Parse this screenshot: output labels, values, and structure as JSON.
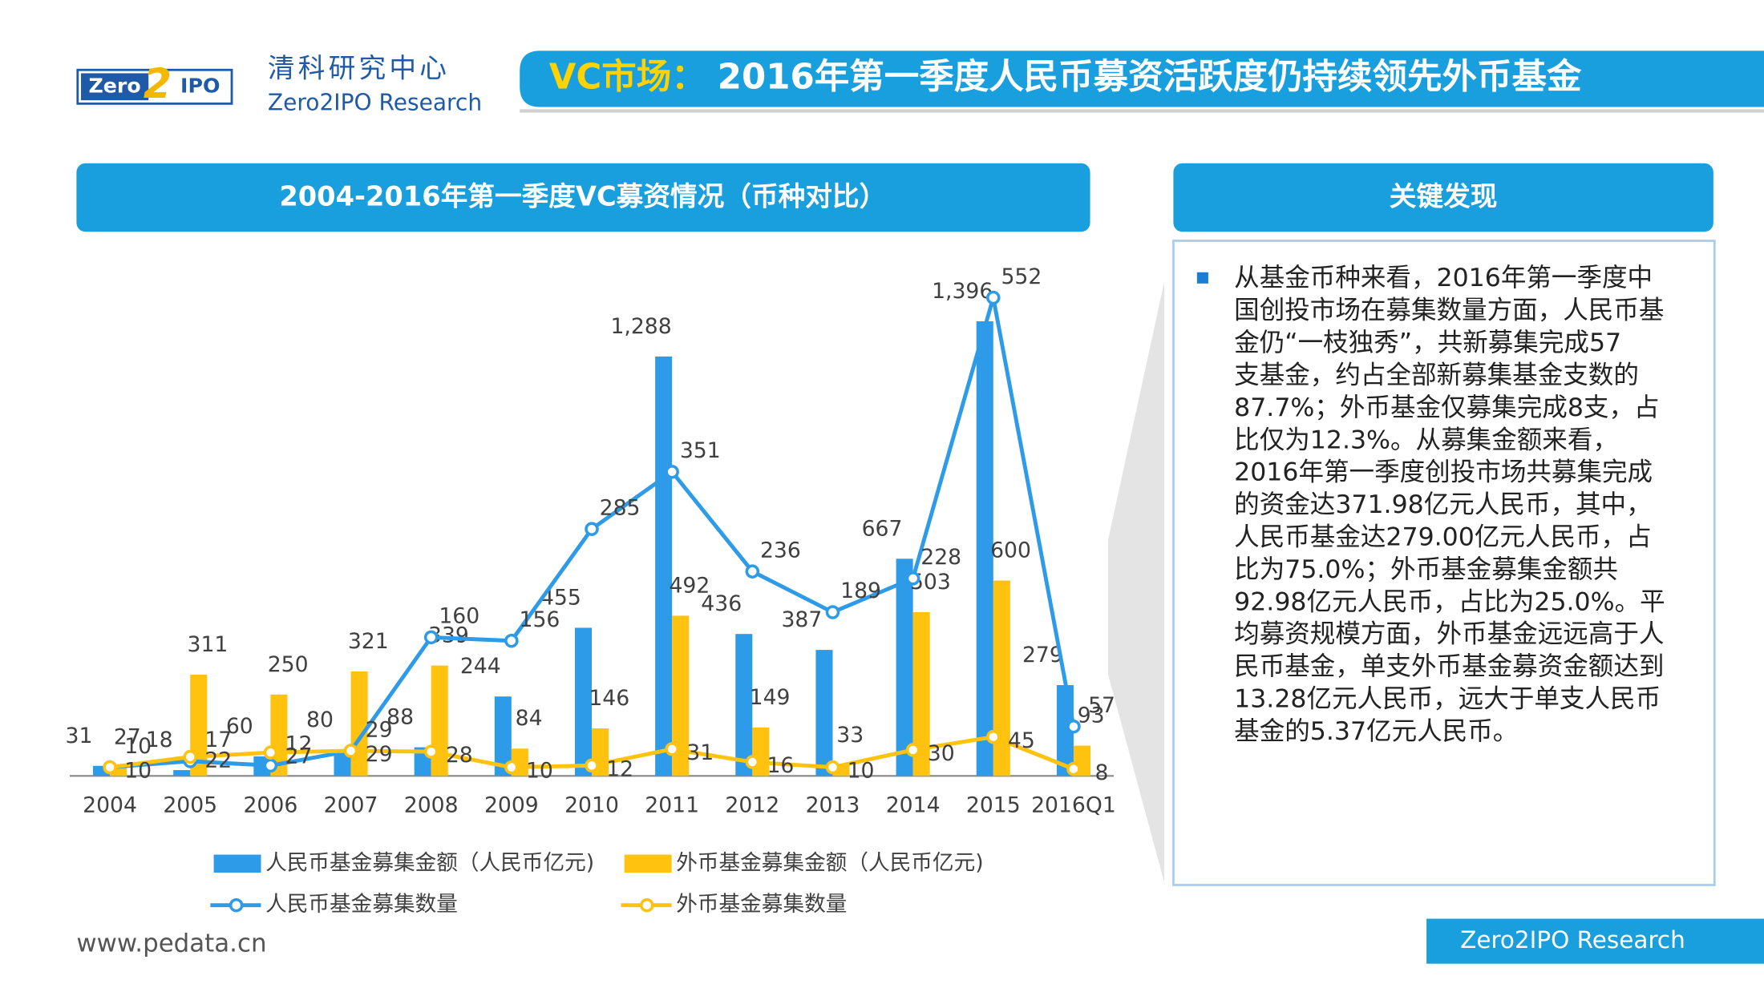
{
  "header": {
    "logo": [
      "Zero",
      "2",
      "IPO"
    ],
    "org_cn": "清科研究中心",
    "org_en": "Zero2IPO Research",
    "title_prefix": "VC市场：",
    "title": "2016年第一季度人民币募资活跃度仍持续领先外币基金"
  },
  "chart_data": {
    "type": "bar",
    "title": "2004-2016年第一季度VC募资情况（币种对比）",
    "categories": [
      "2004",
      "2005",
      "2006",
      "2007",
      "2008",
      "2009",
      "2010",
      "2011",
      "2012",
      "2013",
      "2014",
      "2015",
      "2016Q1"
    ],
    "ylim": [
      0,
      1450
    ],
    "y2lim": [
      0,
      545
    ],
    "series": [
      {
        "name": "人民币基金募集金额（人民币亿元)",
        "type": "bar",
        "color": "#2e9be8",
        "values": [
          31,
          18,
          60,
          80,
          88,
          244,
          455,
          1288,
          436,
          387,
          667,
          1396,
          279
        ],
        "value_labels": [
          "31",
          "18",
          "60",
          "80",
          "88",
          "244",
          "455",
          "1,288",
          "436",
          "387",
          "667",
          "1,396",
          "279"
        ]
      },
      {
        "name": "外币基金募集金额（人民币亿元)",
        "type": "bar",
        "color": "#ffc20e",
        "values": [
          27,
          311,
          250,
          321,
          339,
          84,
          146,
          492,
          149,
          33,
          503,
          600,
          93
        ]
      },
      {
        "name": "人民币基金募集数量",
        "type": "line",
        "axis": "y2",
        "color": "#2e9be8",
        "values": [
          10,
          17,
          12,
          29,
          160,
          156,
          285,
          351,
          236,
          189,
          228,
          552,
          57
        ]
      },
      {
        "name": "外币基金募集数量",
        "type": "line",
        "axis": "y2",
        "color": "#ffc20e",
        "values": [
          10,
          22,
          27,
          29,
          28,
          10,
          12,
          31,
          16,
          10,
          30,
          45,
          8
        ]
      }
    ]
  },
  "findings": {
    "title": "关键发现",
    "lines": [
      "从基金币种来看，2016年第一季度中",
      "国创投市场在募集数量方面，人民币基",
      "金仍“一枝独秀”，共新募集完成57",
      "支基金，约占全部新募集基金支数的",
      "87.7%；外币基金仅募集完成8支，占",
      "比仅为12.3%。从募集金额来看，",
      "2016年第一季度创投市场共募集完成",
      "的资金达371.98亿元人民币，其中，",
      "人民币基金达279.00亿元人民币，占",
      "比为75.0%；外币基金募集金额共",
      "92.98亿元人民币，占比为25.0%。平",
      "均募资规模方面，外币基金远远高于人",
      "民币基金，单支外币基金募资金额达到",
      "13.28亿元人民币，远大于单支人民币",
      "基金的5.37亿元人民币。"
    ]
  },
  "footer": {
    "url": "www.pedata.cn",
    "brand": "Zero2IPO Research"
  }
}
